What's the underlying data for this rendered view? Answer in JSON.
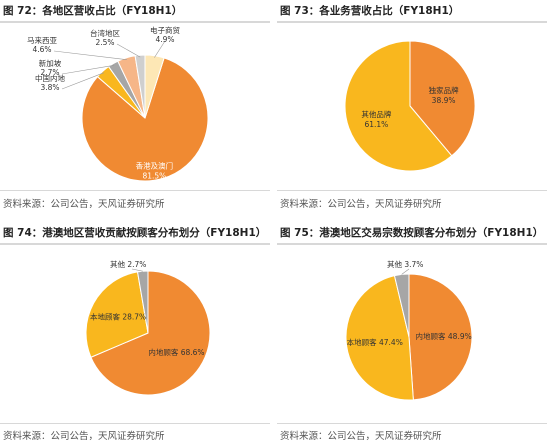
{
  "colors": {
    "orange": "#f08a32",
    "yellow": "#f9b71e",
    "light_orange": "#f6b688",
    "cream": "#fde7b5",
    "grey": "#a6a6a6",
    "light_grey": "#cfcfcf"
  },
  "chart_data": [
    {
      "type": "pie",
      "title": "图 72：各地区营收占比（FY18H1）",
      "source": "资料来源：公司公告，天风证券研究所",
      "slices": [
        {
          "label": "香港及澳门",
          "value": 81.5,
          "value_label": "81.5%",
          "color": "#f08a32"
        },
        {
          "label": "中国内地",
          "value": 3.8,
          "value_label": "3.8%",
          "color": "#f9b71e"
        },
        {
          "label": "新加坡",
          "value": 2.7,
          "value_label": "2.7%",
          "color": "#a6a6a6"
        },
        {
          "label": "马来西亚",
          "value": 4.6,
          "value_label": "4.6%",
          "color": "#f6b688"
        },
        {
          "label": "台湾地区",
          "value": 2.5,
          "value_label": "2.5%",
          "color": "#cfcfcf"
        },
        {
          "label": "电子商贸",
          "value": 4.9,
          "value_label": "4.9%",
          "color": "#fde7b5"
        }
      ]
    },
    {
      "type": "pie",
      "title": "图 73：各业务营收占比（FY18H1）",
      "source": "资料来源：公司公告，天风证券研究所",
      "slices": [
        {
          "label": "独家品牌",
          "value": 38.9,
          "value_label": "38.9%",
          "color": "#f08a32"
        },
        {
          "label": "其他品牌",
          "value": 61.1,
          "value_label": "61.1%",
          "color": "#f9b71e"
        }
      ]
    },
    {
      "type": "pie",
      "title": "图 74：港澳地区营收贡献按顾客分布划分（FY18H1）",
      "source": "资料来源：公司公告，天风证券研究所",
      "slices": [
        {
          "label": "内地顾客",
          "value": 68.6,
          "value_label": "68.6%",
          "color": "#f08a32"
        },
        {
          "label": "本地顾客",
          "value": 28.7,
          "value_label": "28.7%",
          "color": "#f9b71e"
        },
        {
          "label": "其他",
          "value": 2.7,
          "value_label": "2.7%",
          "color": "#a6a6a6"
        }
      ]
    },
    {
      "type": "pie",
      "title": "图 75：港澳地区交易宗数按顾客分布划分（FY18H1）",
      "source": "资料来源：公司公告，天风证券研究所",
      "slices": [
        {
          "label": "内地顾客",
          "value": 48.9,
          "value_label": "48.9%",
          "color": "#f08a32"
        },
        {
          "label": "本地顾客",
          "value": 47.4,
          "value_label": "47.4%",
          "color": "#f9b71e"
        },
        {
          "label": "其他",
          "value": 3.7,
          "value_label": "3.7%",
          "color": "#a6a6a6"
        }
      ]
    }
  ]
}
